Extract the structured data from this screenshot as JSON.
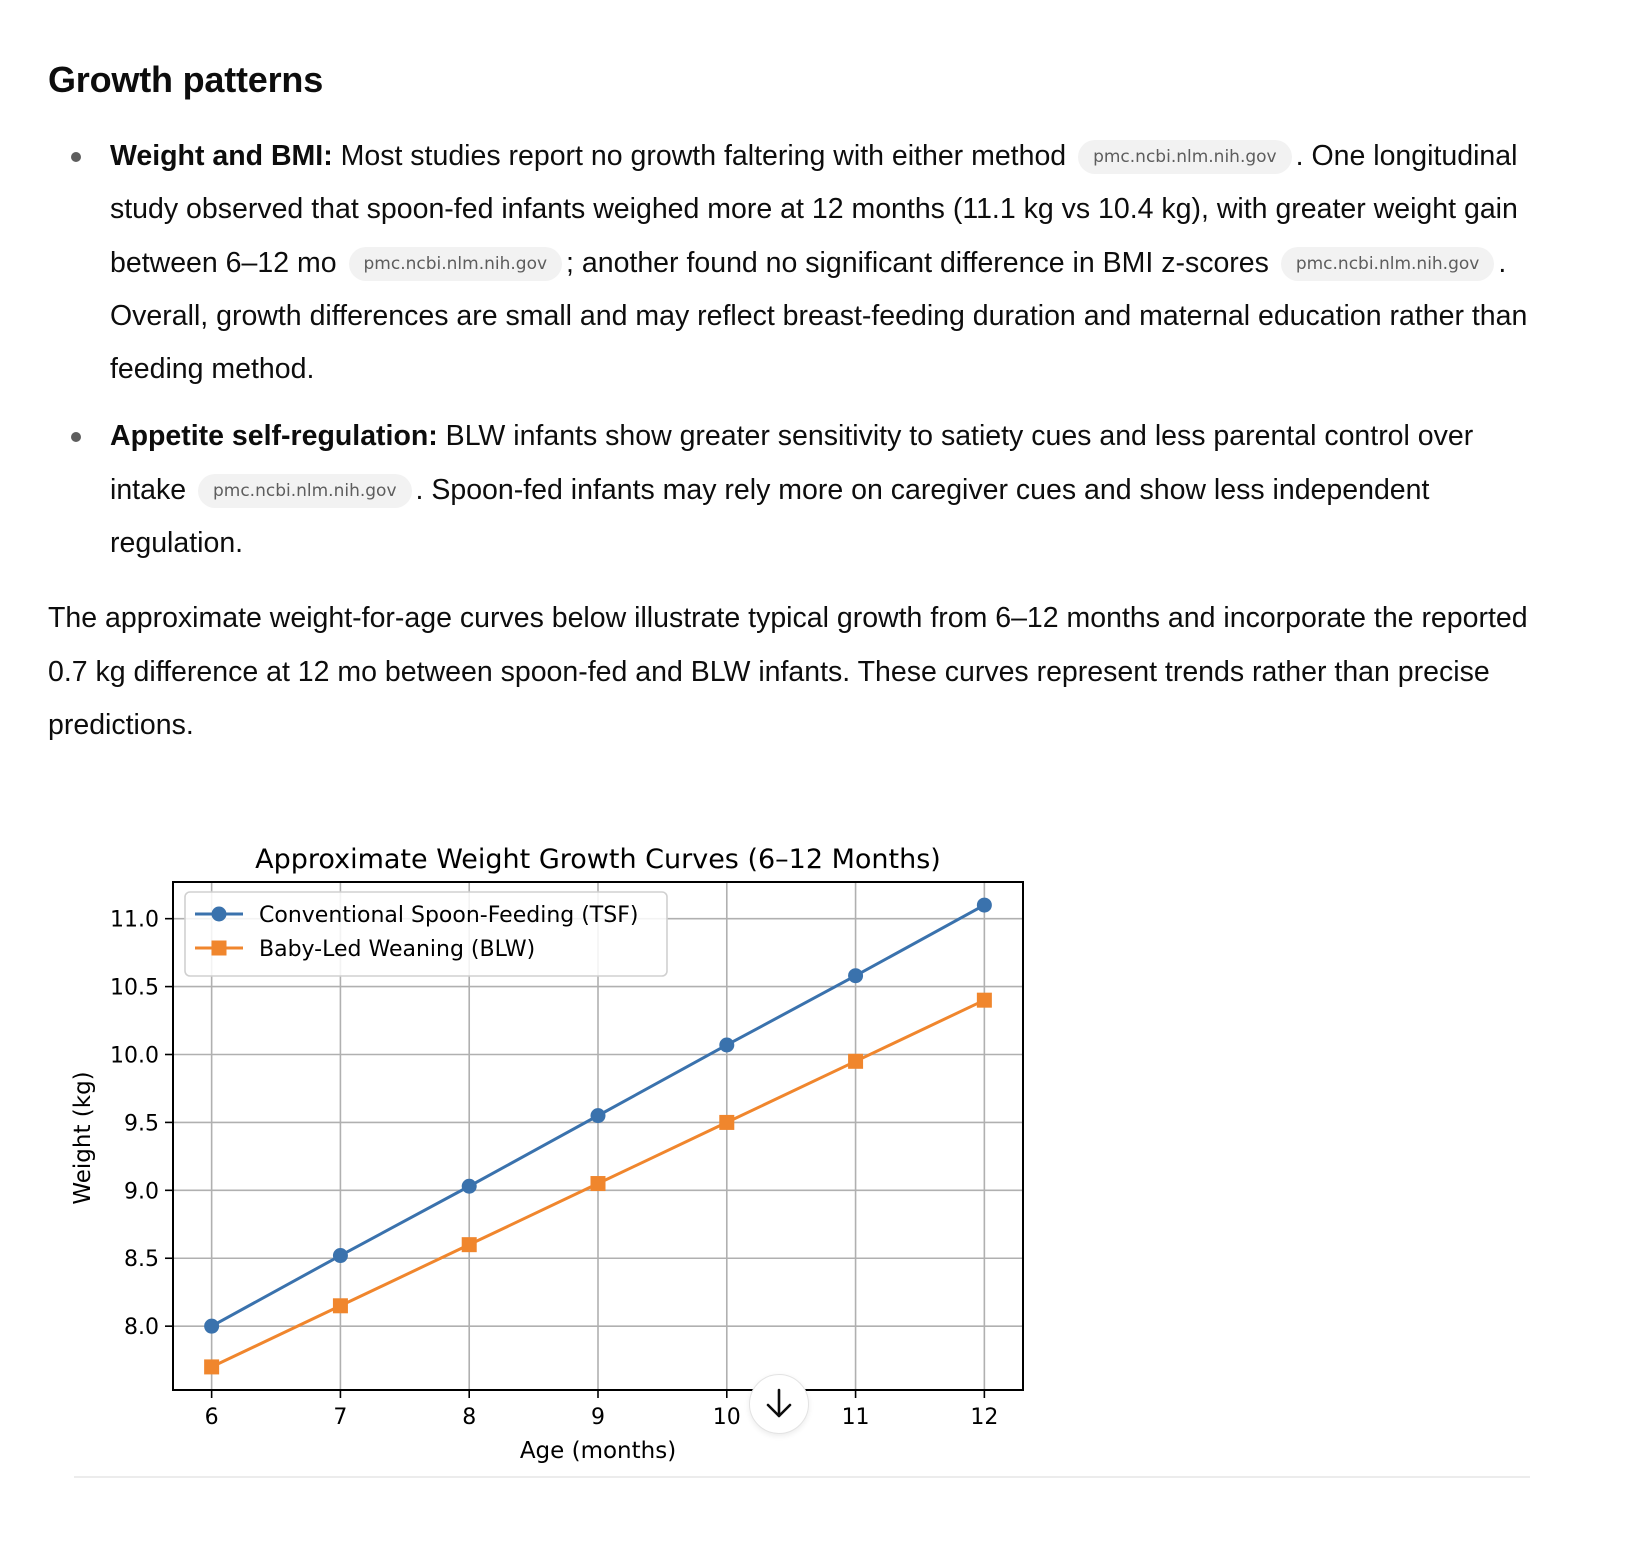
{
  "section": {
    "title": "Growth patterns"
  },
  "bullets": [
    {
      "lead": "Weight and BMI:",
      "segments": [
        {
          "t": " Most studies report no growth faltering with either method "
        },
        {
          "chip": "pmc.ncbi.nlm.nih.gov"
        },
        {
          "t": ". One longitudinal study observed that spoon-fed infants weighed more at 12 months (11.1 kg vs 10.4 kg), with greater weight gain between 6–12 mo "
        },
        {
          "chip": "pmc.ncbi.nlm.nih.gov"
        },
        {
          "t": "; another found no significant difference in BMI z-scores "
        },
        {
          "chip": "pmc.ncbi.nlm.nih.gov"
        },
        {
          "t": ". Overall, growth differences are small and may reflect breast-feeding duration and maternal education rather than feeding method."
        }
      ]
    },
    {
      "lead": "Appetite self-regulation:",
      "segments": [
        {
          "t": " BLW infants show greater sensitivity to satiety cues and less parental control over intake "
        },
        {
          "chip": "pmc.ncbi.nlm.nih.gov"
        },
        {
          "t": ". Spoon-fed infants may rely more on caregiver cues and show less independent regulation."
        }
      ]
    }
  ],
  "paragraph": "The approximate weight-for-age curves below illustrate typical growth from 6–12 months and incorporate the reported 0.7 kg difference at 12 mo between spoon-fed and BLW infants. These curves represent trends rather than precise predictions.",
  "scroll_button": {
    "icon": "arrow-down-icon"
  },
  "chart_data": {
    "type": "line",
    "title": "Approximate Weight Growth Curves (6–12 Months)",
    "xlabel": "Age (months)",
    "ylabel": "Weight (kg)",
    "x": [
      6,
      7,
      8,
      9,
      10,
      11,
      12
    ],
    "xticks": [
      "6",
      "7",
      "8",
      "9",
      "10",
      "11",
      "12"
    ],
    "yticks": [
      "8.0",
      "8.5",
      "9.0",
      "9.5",
      "10.0",
      "10.5",
      "11.0"
    ],
    "xlim": [
      5.7,
      12.3
    ],
    "ylim": [
      7.53,
      11.27
    ],
    "grid": true,
    "legend_position": "top-left",
    "series": [
      {
        "name": "Conventional Spoon-Feeding (TSF)",
        "values": [
          8.0,
          8.52,
          9.03,
          9.55,
          10.07,
          10.58,
          11.1
        ],
        "color": "#3a72ad",
        "marker": "circle"
      },
      {
        "name": "Baby-Led Weaning (BLW)",
        "values": [
          7.7,
          8.15,
          8.6,
          9.05,
          9.5,
          9.95,
          10.4
        ],
        "color": "#f0862d",
        "marker": "square"
      }
    ]
  }
}
